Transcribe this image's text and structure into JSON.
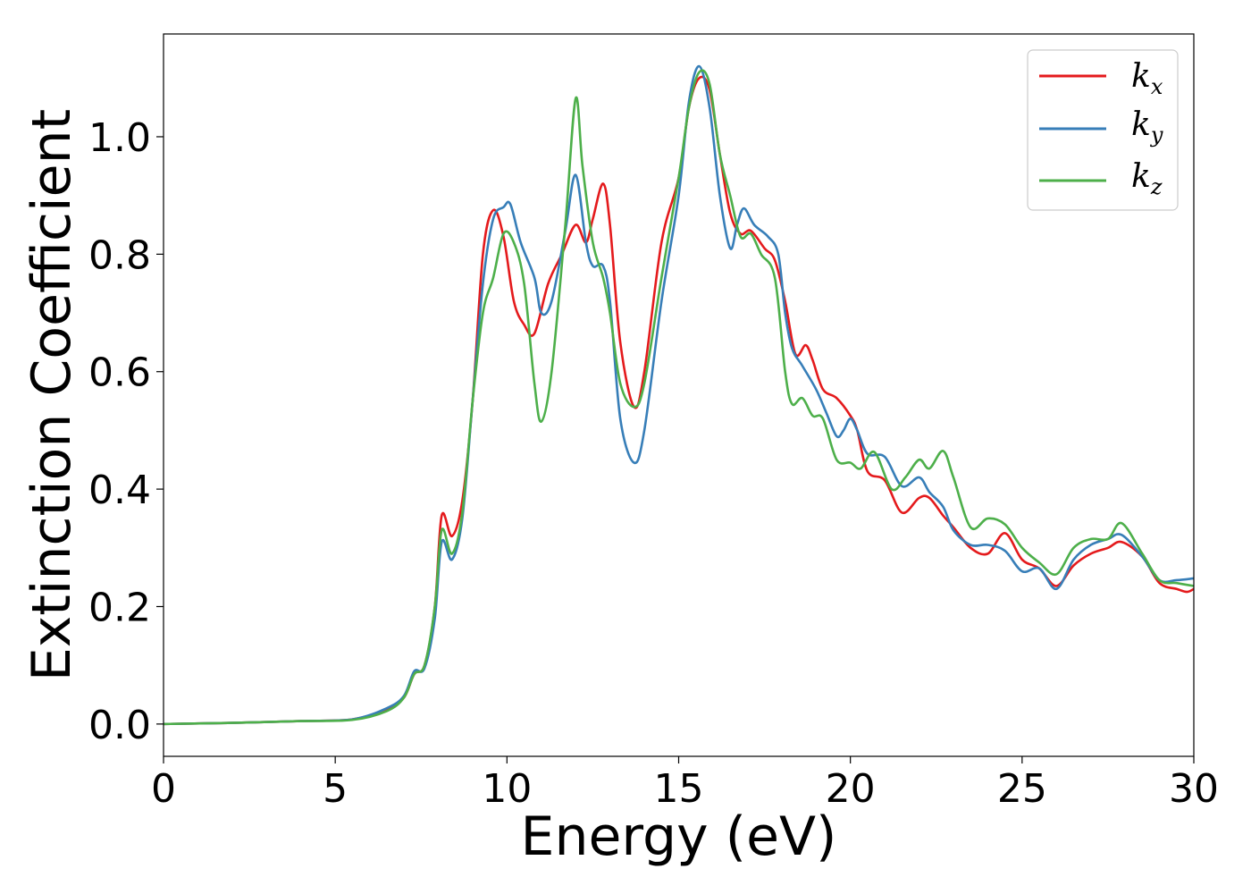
{
  "chart_data": {
    "type": "line",
    "xlabel": "Energy (eV)",
    "ylabel": "Extinction Coefficient",
    "xlim": [
      0,
      30
    ],
    "ylim": [
      -0.055,
      1.175
    ],
    "xticks": [
      0,
      5,
      10,
      15,
      20,
      25,
      30
    ],
    "yticks": [
      0.0,
      0.2,
      0.4,
      0.6,
      0.8,
      1.0
    ],
    "xtick_labels": [
      "0",
      "5",
      "10",
      "15",
      "20",
      "25",
      "30"
    ],
    "ytick_labels": [
      "0.0",
      "0.2",
      "0.4",
      "0.6",
      "0.8",
      "1.0"
    ],
    "grid": false,
    "legend_position": "top-right",
    "series": [
      {
        "name": "k_x",
        "legend_base": "k",
        "legend_sub": "x",
        "color": "#e41a1c",
        "points": [
          [
            0,
            0.0
          ],
          [
            2,
            0.002
          ],
          [
            4,
            0.005
          ],
          [
            5.5,
            0.008
          ],
          [
            6.5,
            0.025
          ],
          [
            7.0,
            0.045
          ],
          [
            7.3,
            0.085
          ],
          [
            7.6,
            0.1
          ],
          [
            7.9,
            0.2
          ],
          [
            8.1,
            0.355
          ],
          [
            8.4,
            0.32
          ],
          [
            8.7,
            0.38
          ],
          [
            9.0,
            0.55
          ],
          [
            9.3,
            0.8
          ],
          [
            9.6,
            0.875
          ],
          [
            9.9,
            0.83
          ],
          [
            10.2,
            0.72
          ],
          [
            10.5,
            0.68
          ],
          [
            10.8,
            0.665
          ],
          [
            11.2,
            0.75
          ],
          [
            11.6,
            0.8
          ],
          [
            12.0,
            0.85
          ],
          [
            12.3,
            0.82
          ],
          [
            12.5,
            0.86
          ],
          [
            12.8,
            0.92
          ],
          [
            13.0,
            0.85
          ],
          [
            13.3,
            0.65
          ],
          [
            13.7,
            0.54
          ],
          [
            14.0,
            0.6
          ],
          [
            14.5,
            0.82
          ],
          [
            15.0,
            0.93
          ],
          [
            15.3,
            1.05
          ],
          [
            15.6,
            1.1
          ],
          [
            15.9,
            1.08
          ],
          [
            16.2,
            0.97
          ],
          [
            16.5,
            0.87
          ],
          [
            16.8,
            0.835
          ],
          [
            17.1,
            0.84
          ],
          [
            17.5,
            0.81
          ],
          [
            17.8,
            0.79
          ],
          [
            18.1,
            0.72
          ],
          [
            18.4,
            0.63
          ],
          [
            18.7,
            0.645
          ],
          [
            18.9,
            0.62
          ],
          [
            19.2,
            0.57
          ],
          [
            19.6,
            0.555
          ],
          [
            20.0,
            0.525
          ],
          [
            20.2,
            0.5
          ],
          [
            20.5,
            0.43
          ],
          [
            21.0,
            0.415
          ],
          [
            21.5,
            0.36
          ],
          [
            22.0,
            0.385
          ],
          [
            22.3,
            0.385
          ],
          [
            22.7,
            0.355
          ],
          [
            23.0,
            0.335
          ],
          [
            23.5,
            0.3
          ],
          [
            24.0,
            0.29
          ],
          [
            24.5,
            0.325
          ],
          [
            25.0,
            0.28
          ],
          [
            25.5,
            0.265
          ],
          [
            26.0,
            0.235
          ],
          [
            26.5,
            0.27
          ],
          [
            27.0,
            0.29
          ],
          [
            27.5,
            0.3
          ],
          [
            27.9,
            0.31
          ],
          [
            28.5,
            0.285
          ],
          [
            29.0,
            0.24
          ],
          [
            29.5,
            0.23
          ],
          [
            29.8,
            0.225
          ],
          [
            30,
            0.23
          ]
        ]
      },
      {
        "name": "k_y",
        "legend_base": "k",
        "legend_sub": "y",
        "color": "#377eb8",
        "points": [
          [
            0,
            0.0
          ],
          [
            2,
            0.002
          ],
          [
            4,
            0.005
          ],
          [
            5.5,
            0.008
          ],
          [
            6.5,
            0.027
          ],
          [
            7.0,
            0.048
          ],
          [
            7.3,
            0.09
          ],
          [
            7.6,
            0.095
          ],
          [
            7.9,
            0.18
          ],
          [
            8.1,
            0.31
          ],
          [
            8.4,
            0.28
          ],
          [
            8.7,
            0.35
          ],
          [
            9.0,
            0.55
          ],
          [
            9.3,
            0.75
          ],
          [
            9.6,
            0.86
          ],
          [
            9.9,
            0.88
          ],
          [
            10.1,
            0.885
          ],
          [
            10.4,
            0.82
          ],
          [
            10.8,
            0.76
          ],
          [
            11.0,
            0.7
          ],
          [
            11.3,
            0.72
          ],
          [
            11.7,
            0.84
          ],
          [
            12.0,
            0.935
          ],
          [
            12.3,
            0.82
          ],
          [
            12.5,
            0.78
          ],
          [
            12.8,
            0.78
          ],
          [
            13.0,
            0.72
          ],
          [
            13.3,
            0.52
          ],
          [
            13.7,
            0.445
          ],
          [
            14.0,
            0.5
          ],
          [
            14.5,
            0.72
          ],
          [
            15.0,
            0.9
          ],
          [
            15.3,
            1.06
          ],
          [
            15.6,
            1.12
          ],
          [
            15.9,
            1.05
          ],
          [
            16.2,
            0.9
          ],
          [
            16.5,
            0.81
          ],
          [
            16.7,
            0.85
          ],
          [
            16.9,
            0.878
          ],
          [
            17.2,
            0.85
          ],
          [
            17.6,
            0.83
          ],
          [
            17.9,
            0.8
          ],
          [
            18.1,
            0.7
          ],
          [
            18.3,
            0.64
          ],
          [
            18.6,
            0.61
          ],
          [
            19.0,
            0.57
          ],
          [
            19.3,
            0.53
          ],
          [
            19.6,
            0.49
          ],
          [
            19.8,
            0.5
          ],
          [
            20.0,
            0.52
          ],
          [
            20.2,
            0.5
          ],
          [
            20.5,
            0.46
          ],
          [
            21.0,
            0.455
          ],
          [
            21.5,
            0.405
          ],
          [
            22.0,
            0.42
          ],
          [
            22.3,
            0.395
          ],
          [
            22.7,
            0.37
          ],
          [
            23.0,
            0.33
          ],
          [
            23.5,
            0.305
          ],
          [
            24.0,
            0.305
          ],
          [
            24.5,
            0.295
          ],
          [
            25.0,
            0.26
          ],
          [
            25.5,
            0.265
          ],
          [
            26.0,
            0.23
          ],
          [
            26.5,
            0.28
          ],
          [
            27.0,
            0.305
          ],
          [
            27.5,
            0.315
          ],
          [
            27.9,
            0.322
          ],
          [
            28.5,
            0.285
          ],
          [
            29.0,
            0.245
          ],
          [
            29.5,
            0.245
          ],
          [
            30,
            0.248
          ]
        ]
      },
      {
        "name": "k_z",
        "legend_base": "k",
        "legend_sub": "z",
        "color": "#4daf4a",
        "points": [
          [
            0,
            0.0
          ],
          [
            2,
            0.002
          ],
          [
            4,
            0.005
          ],
          [
            5.5,
            0.007
          ],
          [
            6.5,
            0.022
          ],
          [
            7.0,
            0.045
          ],
          [
            7.3,
            0.085
          ],
          [
            7.6,
            0.1
          ],
          [
            7.9,
            0.2
          ],
          [
            8.1,
            0.33
          ],
          [
            8.4,
            0.29
          ],
          [
            8.7,
            0.36
          ],
          [
            9.0,
            0.55
          ],
          [
            9.3,
            0.7
          ],
          [
            9.6,
            0.76
          ],
          [
            9.9,
            0.835
          ],
          [
            10.2,
            0.82
          ],
          [
            10.5,
            0.75
          ],
          [
            10.8,
            0.58
          ],
          [
            11.0,
            0.515
          ],
          [
            11.3,
            0.6
          ],
          [
            11.7,
            0.85
          ],
          [
            12.0,
            1.065
          ],
          [
            12.2,
            0.95
          ],
          [
            12.5,
            0.82
          ],
          [
            12.8,
            0.76
          ],
          [
            13.0,
            0.7
          ],
          [
            13.3,
            0.58
          ],
          [
            13.7,
            0.54
          ],
          [
            14.0,
            0.58
          ],
          [
            14.5,
            0.76
          ],
          [
            15.0,
            0.93
          ],
          [
            15.3,
            1.05
          ],
          [
            15.6,
            1.11
          ],
          [
            15.9,
            1.09
          ],
          [
            16.2,
            0.97
          ],
          [
            16.5,
            0.9
          ],
          [
            16.8,
            0.83
          ],
          [
            17.1,
            0.835
          ],
          [
            17.4,
            0.8
          ],
          [
            17.8,
            0.76
          ],
          [
            18.1,
            0.6
          ],
          [
            18.3,
            0.545
          ],
          [
            18.6,
            0.555
          ],
          [
            18.9,
            0.525
          ],
          [
            19.2,
            0.52
          ],
          [
            19.6,
            0.45
          ],
          [
            20.0,
            0.445
          ],
          [
            20.3,
            0.435
          ],
          [
            20.7,
            0.463
          ],
          [
            21.2,
            0.4
          ],
          [
            21.6,
            0.42
          ],
          [
            22.0,
            0.45
          ],
          [
            22.3,
            0.435
          ],
          [
            22.7,
            0.465
          ],
          [
            23.0,
            0.42
          ],
          [
            23.5,
            0.335
          ],
          [
            24.0,
            0.35
          ],
          [
            24.5,
            0.34
          ],
          [
            25.0,
            0.3
          ],
          [
            25.5,
            0.275
          ],
          [
            26.0,
            0.255
          ],
          [
            26.5,
            0.3
          ],
          [
            27.0,
            0.315
          ],
          [
            27.5,
            0.315
          ],
          [
            27.9,
            0.342
          ],
          [
            28.5,
            0.29
          ],
          [
            29.0,
            0.245
          ],
          [
            29.5,
            0.24
          ],
          [
            30,
            0.235
          ]
        ]
      }
    ]
  }
}
